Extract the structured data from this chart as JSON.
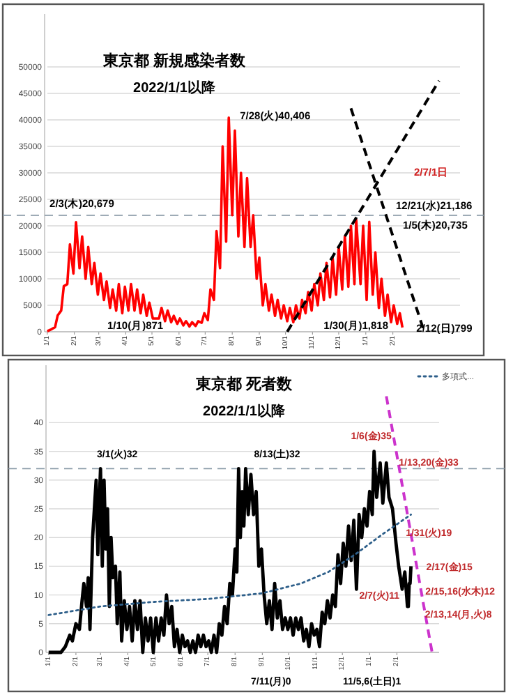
{
  "chart_data": [
    {
      "type": "line",
      "title": "東京都 新規感染者数",
      "subtitle": "2022/1/1以降",
      "xlim": [
        "2021-12-29",
        "2023-04-19"
      ],
      "ylim": [
        0,
        60000
      ],
      "yticks": [
        0,
        5000,
        10000,
        15000,
        20000,
        25000,
        30000,
        35000,
        40000,
        45000,
        50000
      ],
      "grid": "y",
      "legend": false,
      "xticks": [
        {
          "value": "2022-01-01",
          "label": "1/1"
        },
        {
          "value": "2022-02-01",
          "label": "2/1"
        },
        {
          "value": "2022-03-01",
          "label": "3/1"
        },
        {
          "value": "2022-04-01",
          "label": "4/1"
        },
        {
          "value": "2022-05-01",
          "label": "5/1"
        },
        {
          "value": "2022-06-01",
          "label": "6/1"
        },
        {
          "value": "2022-07-01",
          "label": "7/1"
        },
        {
          "value": "2022-08-01",
          "label": "8/1"
        },
        {
          "value": "2022-09-01",
          "label": "9/1"
        },
        {
          "value": "2022-10-01",
          "label": "10/1"
        },
        {
          "value": "2022-11-01",
          "label": "11/1"
        },
        {
          "value": "2022-12-01",
          "label": "12/1"
        },
        {
          "value": "2023-01-01",
          "label": "1/1"
        },
        {
          "value": "2023-02-01",
          "label": "2/1"
        }
      ],
      "series": [
        {
          "color": "#ff0000",
          "line_style": "solid",
          "x": [
            "2022-01-01",
            "2022-01-05",
            "2022-01-10",
            "2022-01-13",
            "2022-01-17",
            "2022-01-20",
            "2022-01-24",
            "2022-01-27",
            "2022-01-31",
            "2022-02-03",
            "2022-02-07",
            "2022-02-10",
            "2022-02-14",
            "2022-02-17",
            "2022-02-21",
            "2022-02-24",
            "2022-02-28",
            "2022-03-03",
            "2022-03-07",
            "2022-03-10",
            "2022-03-14",
            "2022-03-17",
            "2022-03-21",
            "2022-03-24",
            "2022-03-28",
            "2022-03-31",
            "2022-04-04",
            "2022-04-07",
            "2022-04-11",
            "2022-04-14",
            "2022-04-18",
            "2022-04-21",
            "2022-04-25",
            "2022-04-28",
            "2022-05-02",
            "2022-05-09",
            "2022-05-12",
            "2022-05-16",
            "2022-05-19",
            "2022-05-23",
            "2022-05-26",
            "2022-05-30",
            "2022-06-02",
            "2022-06-06",
            "2022-06-09",
            "2022-06-13",
            "2022-06-16",
            "2022-06-20",
            "2022-06-23",
            "2022-06-27",
            "2022-06-30",
            "2022-07-04",
            "2022-07-07",
            "2022-07-11",
            "2022-07-14",
            "2022-07-18",
            "2022-07-21",
            "2022-07-25",
            "2022-07-28",
            "2022-08-01",
            "2022-08-04",
            "2022-08-08",
            "2022-08-11",
            "2022-08-15",
            "2022-08-18",
            "2022-08-22",
            "2022-08-25",
            "2022-08-29",
            "2022-09-01",
            "2022-09-05",
            "2022-09-08",
            "2022-09-12",
            "2022-09-15",
            "2022-09-19",
            "2022-09-22",
            "2022-09-26",
            "2022-09-29",
            "2022-10-03",
            "2022-10-06",
            "2022-10-10",
            "2022-10-13",
            "2022-10-17",
            "2022-10-20",
            "2022-10-24",
            "2022-10-27",
            "2022-10-31",
            "2022-11-03",
            "2022-11-07",
            "2022-11-10",
            "2022-11-14",
            "2022-11-17",
            "2022-11-21",
            "2022-11-24",
            "2022-11-28",
            "2022-12-01",
            "2022-12-05",
            "2022-12-08",
            "2022-12-12",
            "2022-12-15",
            "2022-12-19",
            "2022-12-21",
            "2022-12-26",
            "2022-12-29",
            "2023-01-02",
            "2023-01-05",
            "2023-01-09",
            "2023-01-12",
            "2023-01-16",
            "2023-01-19",
            "2023-01-23",
            "2023-01-26",
            "2023-01-30",
            "2023-02-02",
            "2023-02-06",
            "2023-02-09",
            "2023-02-12"
          ],
          "values": [
            100,
            400,
            871,
            3100,
            4000,
            8600,
            9000,
            16500,
            11000,
            20679,
            12000,
            18000,
            10000,
            16000,
            9000,
            13000,
            7000,
            11000,
            6000,
            9500,
            4500,
            8000,
            4000,
            9000,
            3500,
            8500,
            4000,
            9000,
            4000,
            8000,
            3500,
            7000,
            3000,
            5500,
            2500,
            2500,
            4500,
            2000,
            4000,
            1800,
            3000,
            1500,
            2500,
            1200,
            2000,
            1000,
            1800,
            1100,
            2000,
            1700,
            3500,
            2200,
            8000,
            6000,
            19000,
            12000,
            35000,
            17000,
            40406,
            22000,
            38000,
            18000,
            30000,
            16000,
            29000,
            16000,
            22000,
            10000,
            14000,
            5000,
            9000,
            4000,
            7000,
            3000,
            6000,
            2500,
            5000,
            2000,
            4500,
            1800,
            5000,
            2500,
            6000,
            3500,
            7500,
            4000,
            9000,
            5000,
            11000,
            6000,
            13000,
            6500,
            14000,
            7000,
            16000,
            8000,
            18000,
            8500,
            20000,
            9000,
            21186,
            9000,
            20000,
            6000,
            20735,
            7000,
            15000,
            4500,
            10000,
            3000,
            7000,
            1818,
            5000,
            1500,
            3500,
            799
          ]
        },
        {
          "type": "line",
          "color": "#000000",
          "line_style": "dashed",
          "x": [
            "2022-10-03",
            "2023-03-26"
          ],
          "values": [
            0,
            47400
          ]
        },
        {
          "type": "line",
          "color": "#000000",
          "line_style": "dashed",
          "x": [
            "2022-12-15",
            "2023-03-09"
          ],
          "values": [
            42200,
            0
          ]
        }
      ],
      "ref_lines": [
        {
          "axis": "y",
          "value": 22000,
          "color": "#8a9aa8",
          "line_style": "dashed"
        }
      ],
      "annotations": [
        {
          "text": "2/3(木)20,679",
          "x": "2022-02-03",
          "y": 20679
        },
        {
          "text": "7/28(火)40,406",
          "x": "2022-07-28",
          "y": 40406
        },
        "1/10(月)871",
        {
          "text": "1/30(月)1,818",
          "x": "2023-01-30",
          "y": 1818
        },
        "12/21(水)21,186",
        "1/5(木)20,735",
        {
          "text": "2/12(日)799",
          "x": "2023-02-12",
          "y": 799
        },
        "2/7/1日"
      ]
    },
    {
      "type": "line",
      "title": "東京都 死者数",
      "subtitle": "2022/1/1以降",
      "xlim": [
        "2021-12-29",
        "2023-03-21"
      ],
      "ylim": [
        0,
        50
      ],
      "yticks": [
        0,
        5,
        10,
        15,
        20,
        25,
        30,
        35,
        40
      ],
      "grid": "y",
      "legend": "top right",
      "xticks": [
        {
          "value": "2022-01-01",
          "label": "1/1"
        },
        {
          "value": "2022-02-01",
          "label": "2/1"
        },
        {
          "value": "2022-03-01",
          "label": "3/1"
        },
        {
          "value": "2022-04-01",
          "label": "4/1"
        },
        {
          "value": "2022-05-01",
          "label": "5/1"
        },
        {
          "value": "2022-06-01",
          "label": "6/1"
        },
        {
          "value": "2022-07-01",
          "label": "7/1"
        },
        {
          "value": "2022-08-01",
          "label": "8/1"
        },
        {
          "value": "2022-09-01",
          "label": "9/1"
        },
        {
          "value": "2022-10-01",
          "label": "10/1"
        },
        {
          "value": "2022-11-01",
          "label": "11/1"
        },
        {
          "value": "2022-12-01",
          "label": "12/1"
        },
        {
          "value": "2023-01-01",
          "label": "1/1"
        },
        {
          "value": "2023-02-01",
          "label": "2/1"
        }
      ],
      "series": [
        {
          "color": "#000000",
          "line_style": "solid",
          "x": [
            "2022-01-01",
            "2022-01-15",
            "2022-01-20",
            "2022-01-25",
            "2022-01-28",
            "2022-02-01",
            "2022-02-05",
            "2022-02-08",
            "2022-02-10",
            "2022-02-13",
            "2022-02-15",
            "2022-02-17",
            "2022-02-20",
            "2022-02-22",
            "2022-02-24",
            "2022-02-26",
            "2022-02-28",
            "2022-03-01",
            "2022-03-03",
            "2022-03-05",
            "2022-03-07",
            "2022-03-09",
            "2022-03-11",
            "2022-03-13",
            "2022-03-15",
            "2022-03-18",
            "2022-03-20",
            "2022-03-23",
            "2022-03-25",
            "2022-03-28",
            "2022-03-31",
            "2022-04-03",
            "2022-04-06",
            "2022-04-09",
            "2022-04-12",
            "2022-04-15",
            "2022-04-18",
            "2022-04-21",
            "2022-04-24",
            "2022-04-27",
            "2022-04-30",
            "2022-05-03",
            "2022-05-06",
            "2022-05-09",
            "2022-05-12",
            "2022-05-15",
            "2022-05-18",
            "2022-05-21",
            "2022-05-24",
            "2022-05-27",
            "2022-05-30",
            "2022-06-02",
            "2022-06-05",
            "2022-06-08",
            "2022-06-11",
            "2022-06-14",
            "2022-06-17",
            "2022-06-20",
            "2022-06-23",
            "2022-06-26",
            "2022-06-29",
            "2022-07-02",
            "2022-07-05",
            "2022-07-08",
            "2022-07-11",
            "2022-07-14",
            "2022-07-17",
            "2022-07-20",
            "2022-07-23",
            "2022-07-26",
            "2022-07-29",
            "2022-08-01",
            "2022-08-03",
            "2022-08-05",
            "2022-08-07",
            "2022-08-09",
            "2022-08-11",
            "2022-08-13",
            "2022-08-16",
            "2022-08-19",
            "2022-08-22",
            "2022-08-25",
            "2022-08-28",
            "2022-08-31",
            "2022-09-03",
            "2022-09-06",
            "2022-09-09",
            "2022-09-12",
            "2022-09-15",
            "2022-09-18",
            "2022-09-21",
            "2022-09-24",
            "2022-09-27",
            "2022-09-30",
            "2022-10-03",
            "2022-10-06",
            "2022-10-09",
            "2022-10-12",
            "2022-10-15",
            "2022-10-18",
            "2022-10-21",
            "2022-10-24",
            "2022-10-27",
            "2022-10-30",
            "2022-11-02",
            "2022-11-05",
            "2022-11-08",
            "2022-11-11",
            "2022-11-14",
            "2022-11-17",
            "2022-11-20",
            "2022-11-23",
            "2022-11-26",
            "2022-11-29",
            "2022-12-02",
            "2022-12-05",
            "2022-12-08",
            "2022-12-11",
            "2022-12-14",
            "2022-12-17",
            "2022-12-20",
            "2022-12-23",
            "2022-12-26",
            "2022-12-29",
            "2023-01-01",
            "2023-01-04",
            "2023-01-06",
            "2023-01-09",
            "2023-01-13",
            "2023-01-16",
            "2023-01-20",
            "2023-01-23",
            "2023-01-27",
            "2023-01-31",
            "2023-02-03",
            "2023-02-07",
            "2023-02-10",
            "2023-02-13",
            "2023-02-14",
            "2023-02-15",
            "2023-02-16",
            "2023-02-17"
          ],
          "values": [
            0,
            0,
            1,
            3,
            2,
            5,
            4,
            9,
            12,
            8,
            13,
            4,
            20,
            25,
            30,
            17,
            28,
            32,
            15,
            30,
            18,
            25,
            8,
            20,
            13,
            15,
            5,
            14,
            2,
            9,
            4,
            8,
            2,
            9,
            4,
            9,
            0,
            6,
            2,
            6,
            0,
            6,
            2,
            6,
            3,
            10,
            5,
            8,
            1,
            4,
            0,
            3,
            1,
            2,
            0,
            2,
            0,
            3,
            1,
            3,
            1,
            2,
            0,
            3,
            0,
            5,
            3,
            8,
            5,
            12,
            10,
            18,
            14,
            32,
            20,
            28,
            22,
            32,
            24,
            31,
            24,
            28,
            15,
            18,
            10,
            5,
            9,
            4,
            12,
            6,
            9,
            4,
            6,
            4,
            6,
            3,
            6,
            4,
            6,
            2,
            4,
            1,
            5,
            3,
            4,
            1,
            7,
            5,
            9,
            6,
            10,
            8,
            17,
            12,
            19,
            15,
            22,
            16,
            23,
            11,
            24,
            20,
            25,
            22,
            28,
            24,
            35,
            27,
            33,
            26,
            33,
            27,
            25,
            19,
            15,
            11,
            14,
            8,
            8,
            12,
            12,
            15
          ]
        },
        {
          "type": "line",
          "name": "多項式...",
          "color": "#2e5f8a",
          "line_style": "dotted",
          "x": [
            "2022-01-01",
            "2022-03-01",
            "2022-05-01",
            "2022-07-01",
            "2022-09-01",
            "2022-10-15",
            "2022-11-15",
            "2022-12-15",
            "2023-01-15",
            "2023-02-17"
          ],
          "values": [
            6.5,
            8.0,
            8.8,
            9.3,
            10.3,
            12,
            14,
            17,
            20.5,
            24
          ]
        },
        {
          "type": "line",
          "color": "#cc33cc",
          "line_style": "dashed",
          "x": [
            "2023-01-20",
            "2023-03-13"
          ],
          "values": [
            44.6,
            0
          ]
        }
      ],
      "ref_lines": [
        {
          "axis": "y",
          "value": 32,
          "color": "#8a9aa8",
          "line_style": "dashed"
        }
      ],
      "annotations": [
        {
          "text": "3/1(火)32",
          "x": "2022-03-01",
          "y": 32
        },
        {
          "text": "8/13(土)32",
          "x": "2022-08-13",
          "y": 32
        },
        {
          "text": "1/6(金)35",
          "x": "2023-01-06",
          "y": 35
        },
        {
          "text": "1/13,20(金)33",
          "x": "2023-01-20",
          "y": 33
        },
        {
          "text": "1/31(火)19",
          "x": "2023-01-31",
          "y": 19
        },
        {
          "text": "2/7(火)11",
          "x": "2023-02-07",
          "y": 11
        },
        {
          "text": "2/17(金)15",
          "x": "2023-02-17",
          "y": 15
        },
        {
          "text": "2/15,16(水木)12",
          "x": "2023-02-16",
          "y": 12
        },
        {
          "text": "2/13,14(月,火)8",
          "x": "2023-02-14",
          "y": 8
        },
        "7/11(月)0",
        "11/5,6(土日)1"
      ]
    }
  ]
}
